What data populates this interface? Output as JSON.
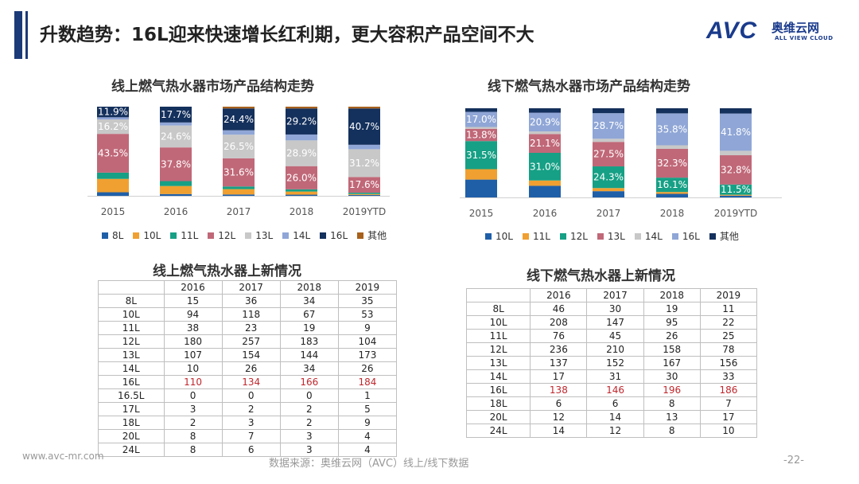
{
  "header": {
    "title": "升数趋势：16L迎来快速增长红利期，更大容积产品空间不大",
    "logo_main": "AVC",
    "logo_cn": "奥维云网",
    "logo_en": "ALL VIEW CLOUD",
    "brand_color": "#1a3b8c"
  },
  "chart_data": [
    {
      "type": "bar",
      "stacked": true,
      "title": "线上燃气热水器市场产品结构走势",
      "categories": [
        "2015",
        "2016",
        "2017",
        "2018",
        "2019YTD"
      ],
      "ylim": [
        0,
        100
      ],
      "legend_position": "bottom",
      "series": [
        {
          "name": "8L",
          "color": "#1f5fa8",
          "values": [
            4.0,
            2.0,
            1.5,
            1.3,
            1.0
          ],
          "labels": [
            "",
            "",
            "",
            "",
            ""
          ]
        },
        {
          "name": "10L",
          "color": "#f0a030",
          "values": [
            15.0,
            9.0,
            6.0,
            3.5,
            1.0
          ],
          "labels": [
            "",
            "",
            "",
            "",
            ""
          ]
        },
        {
          "name": "11L",
          "color": "#16a085",
          "values": [
            7.0,
            5.5,
            3.0,
            2.5,
            1.5
          ],
          "labels": [
            "",
            "",
            "",
            "",
            ""
          ]
        },
        {
          "name": "12L",
          "color": "#c06878",
          "values": [
            43.5,
            37.8,
            31.6,
            26.0,
            17.6
          ],
          "labels": [
            "43.5%",
            "37.8%",
            "31.6%",
            "26.0%",
            "17.6%"
          ]
        },
        {
          "name": "13L",
          "color": "#c8c8c8",
          "values": [
            16.2,
            24.6,
            26.5,
            28.9,
            31.2
          ],
          "labels": [
            "16.2%",
            "24.6%",
            "26.5%",
            "28.9%",
            "31.2%"
          ]
        },
        {
          "name": "14L",
          "color": "#8fa6d6",
          "values": [
            2.4,
            3.4,
            5.0,
            6.6,
            5.0
          ],
          "labels": [
            "",
            "",
            "",
            "",
            ""
          ]
        },
        {
          "name": "16L",
          "color": "#14305c",
          "values": [
            11.9,
            17.7,
            24.4,
            29.2,
            40.7
          ],
          "labels": [
            "11.9%",
            "17.7%",
            "24.4%",
            "29.2%",
            "40.7%"
          ]
        },
        {
          "name": "其他",
          "color": "#a8611c",
          "values": [
            0.0,
            0.0,
            2.0,
            2.0,
            2.0
          ],
          "labels": [
            "",
            "",
            "",
            "",
            ""
          ]
        }
      ]
    },
    {
      "type": "bar",
      "stacked": true,
      "title": "线下燃气热水器市场产品结构走势",
      "categories": [
        "2015",
        "2016",
        "2017",
        "2018",
        "2019YTD"
      ],
      "ylim": [
        0,
        100
      ],
      "legend_position": "bottom",
      "series": [
        {
          "name": "10L",
          "color": "#1f5fa8",
          "values": [
            20.0,
            13.0,
            7.0,
            4.0,
            2.0
          ],
          "labels": [
            "",
            "",
            "",
            "",
            ""
          ]
        },
        {
          "name": "11L",
          "color": "#f0a030",
          "values": [
            11.7,
            6.0,
            3.5,
            2.1,
            1.0
          ],
          "labels": [
            "",
            "",
            "",
            "",
            ""
          ]
        },
        {
          "name": "12L",
          "color": "#16a085",
          "values": [
            31.5,
            31.0,
            24.3,
            16.1,
            11.5
          ],
          "labels": [
            "31.5%",
            "31.0%",
            "24.3%",
            "16.1%",
            "11.5%"
          ]
        },
        {
          "name": "13L",
          "color": "#c06878",
          "values": [
            13.8,
            21.1,
            27.5,
            32.3,
            32.8
          ],
          "labels": [
            "13.8%",
            "21.1%",
            "27.5%",
            "32.3%",
            "32.8%"
          ]
        },
        {
          "name": "14L",
          "color": "#c8c8c8",
          "values": [
            2.0,
            3.0,
            3.5,
            4.0,
            5.0
          ],
          "labels": [
            "",
            "",
            "",
            "",
            ""
          ]
        },
        {
          "name": "16L",
          "color": "#8fa6d6",
          "values": [
            17.0,
            20.9,
            28.7,
            35.8,
            41.8
          ],
          "labels": [
            "17.0%",
            "20.9%",
            "28.7%",
            "35.8%",
            "41.8%"
          ]
        },
        {
          "name": "其他",
          "color": "#14305c",
          "values": [
            4.0,
            5.0,
            5.5,
            5.7,
            5.9
          ],
          "labels": [
            "",
            "",
            "",
            "",
            ""
          ]
        }
      ]
    },
    {
      "type": "table",
      "title": "线上燃气热水器上新情况",
      "columns": [
        "",
        "2016",
        "2017",
        "2018",
        "2019"
      ],
      "highlight_row": "16L",
      "rows": [
        [
          "8L",
          "15",
          "36",
          "34",
          "35"
        ],
        [
          "10L",
          "94",
          "118",
          "67",
          "53"
        ],
        [
          "11L",
          "38",
          "23",
          "19",
          "9"
        ],
        [
          "12L",
          "180",
          "257",
          "183",
          "104"
        ],
        [
          "13L",
          "107",
          "154",
          "144",
          "173"
        ],
        [
          "14L",
          "10",
          "26",
          "34",
          "26"
        ],
        [
          "16L",
          "110",
          "134",
          "166",
          "184"
        ],
        [
          "16.5L",
          "0",
          "0",
          "0",
          "1"
        ],
        [
          "17L",
          "3",
          "2",
          "2",
          "5"
        ],
        [
          "18L",
          "2",
          "3",
          "2",
          "9"
        ],
        [
          "20L",
          "8",
          "7",
          "3",
          "4"
        ],
        [
          "24L",
          "8",
          "6",
          "3",
          "4"
        ]
      ]
    },
    {
      "type": "table",
      "title": "线下燃气热水器上新情况",
      "columns": [
        "",
        "2016",
        "2017",
        "2018",
        "2019"
      ],
      "highlight_row": "16L",
      "rows": [
        [
          "8L",
          "46",
          "30",
          "19",
          "11"
        ],
        [
          "10L",
          "208",
          "147",
          "95",
          "22"
        ],
        [
          "11L",
          "76",
          "45",
          "26",
          "25"
        ],
        [
          "12L",
          "236",
          "210",
          "158",
          "78"
        ],
        [
          "13L",
          "137",
          "152",
          "167",
          "156"
        ],
        [
          "14L",
          "17",
          "31",
          "30",
          "33"
        ],
        [
          "16L",
          "138",
          "146",
          "196",
          "186"
        ],
        [
          "18L",
          "6",
          "6",
          "8",
          "7"
        ],
        [
          "20L",
          "12",
          "14",
          "13",
          "17"
        ],
        [
          "24L",
          "14",
          "12",
          "8",
          "10"
        ]
      ]
    }
  ],
  "footer": {
    "url": "www.avc-mr.com",
    "source": "数据来源：奥维云网（AVC）线上/线下数据",
    "page": "-22-"
  }
}
